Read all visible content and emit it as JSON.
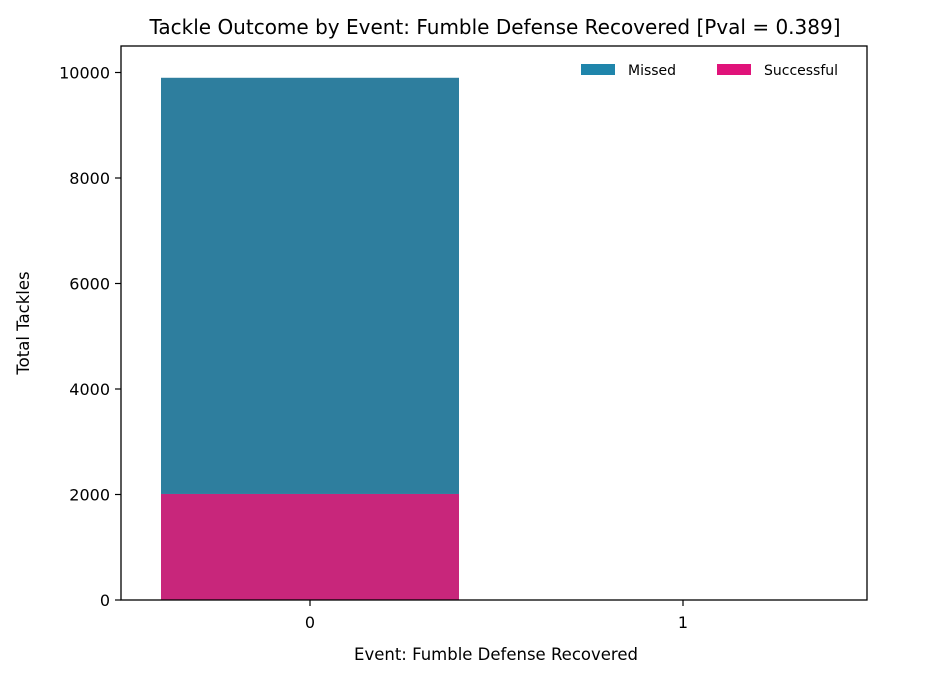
{
  "chart_data": {
    "type": "bar",
    "stacked": true,
    "title": "Tackle Outcome by Event: Fumble Defense Recovered [Pval = 0.389]",
    "xlabel": "Event: Fumble Defense Recovered",
    "ylabel": "Total Tackles",
    "categories": [
      "0",
      "1"
    ],
    "series": [
      {
        "name": "Missed",
        "values": [
          7890,
          0
        ],
        "color": "#2e7e9e"
      },
      {
        "name": "Successful",
        "values": [
          2010,
          0
        ],
        "color": "#c8267b"
      }
    ],
    "ylim": [
      0,
      10000
    ],
    "yticks": [
      0,
      2000,
      4000,
      6000,
      8000,
      10000
    ],
    "grid": false,
    "legend": {
      "position": "top-right",
      "entries": [
        {
          "label": "Missed",
          "color": "#1f85ab"
        },
        {
          "label": "Successful",
          "color": "#e0137a"
        }
      ]
    }
  }
}
